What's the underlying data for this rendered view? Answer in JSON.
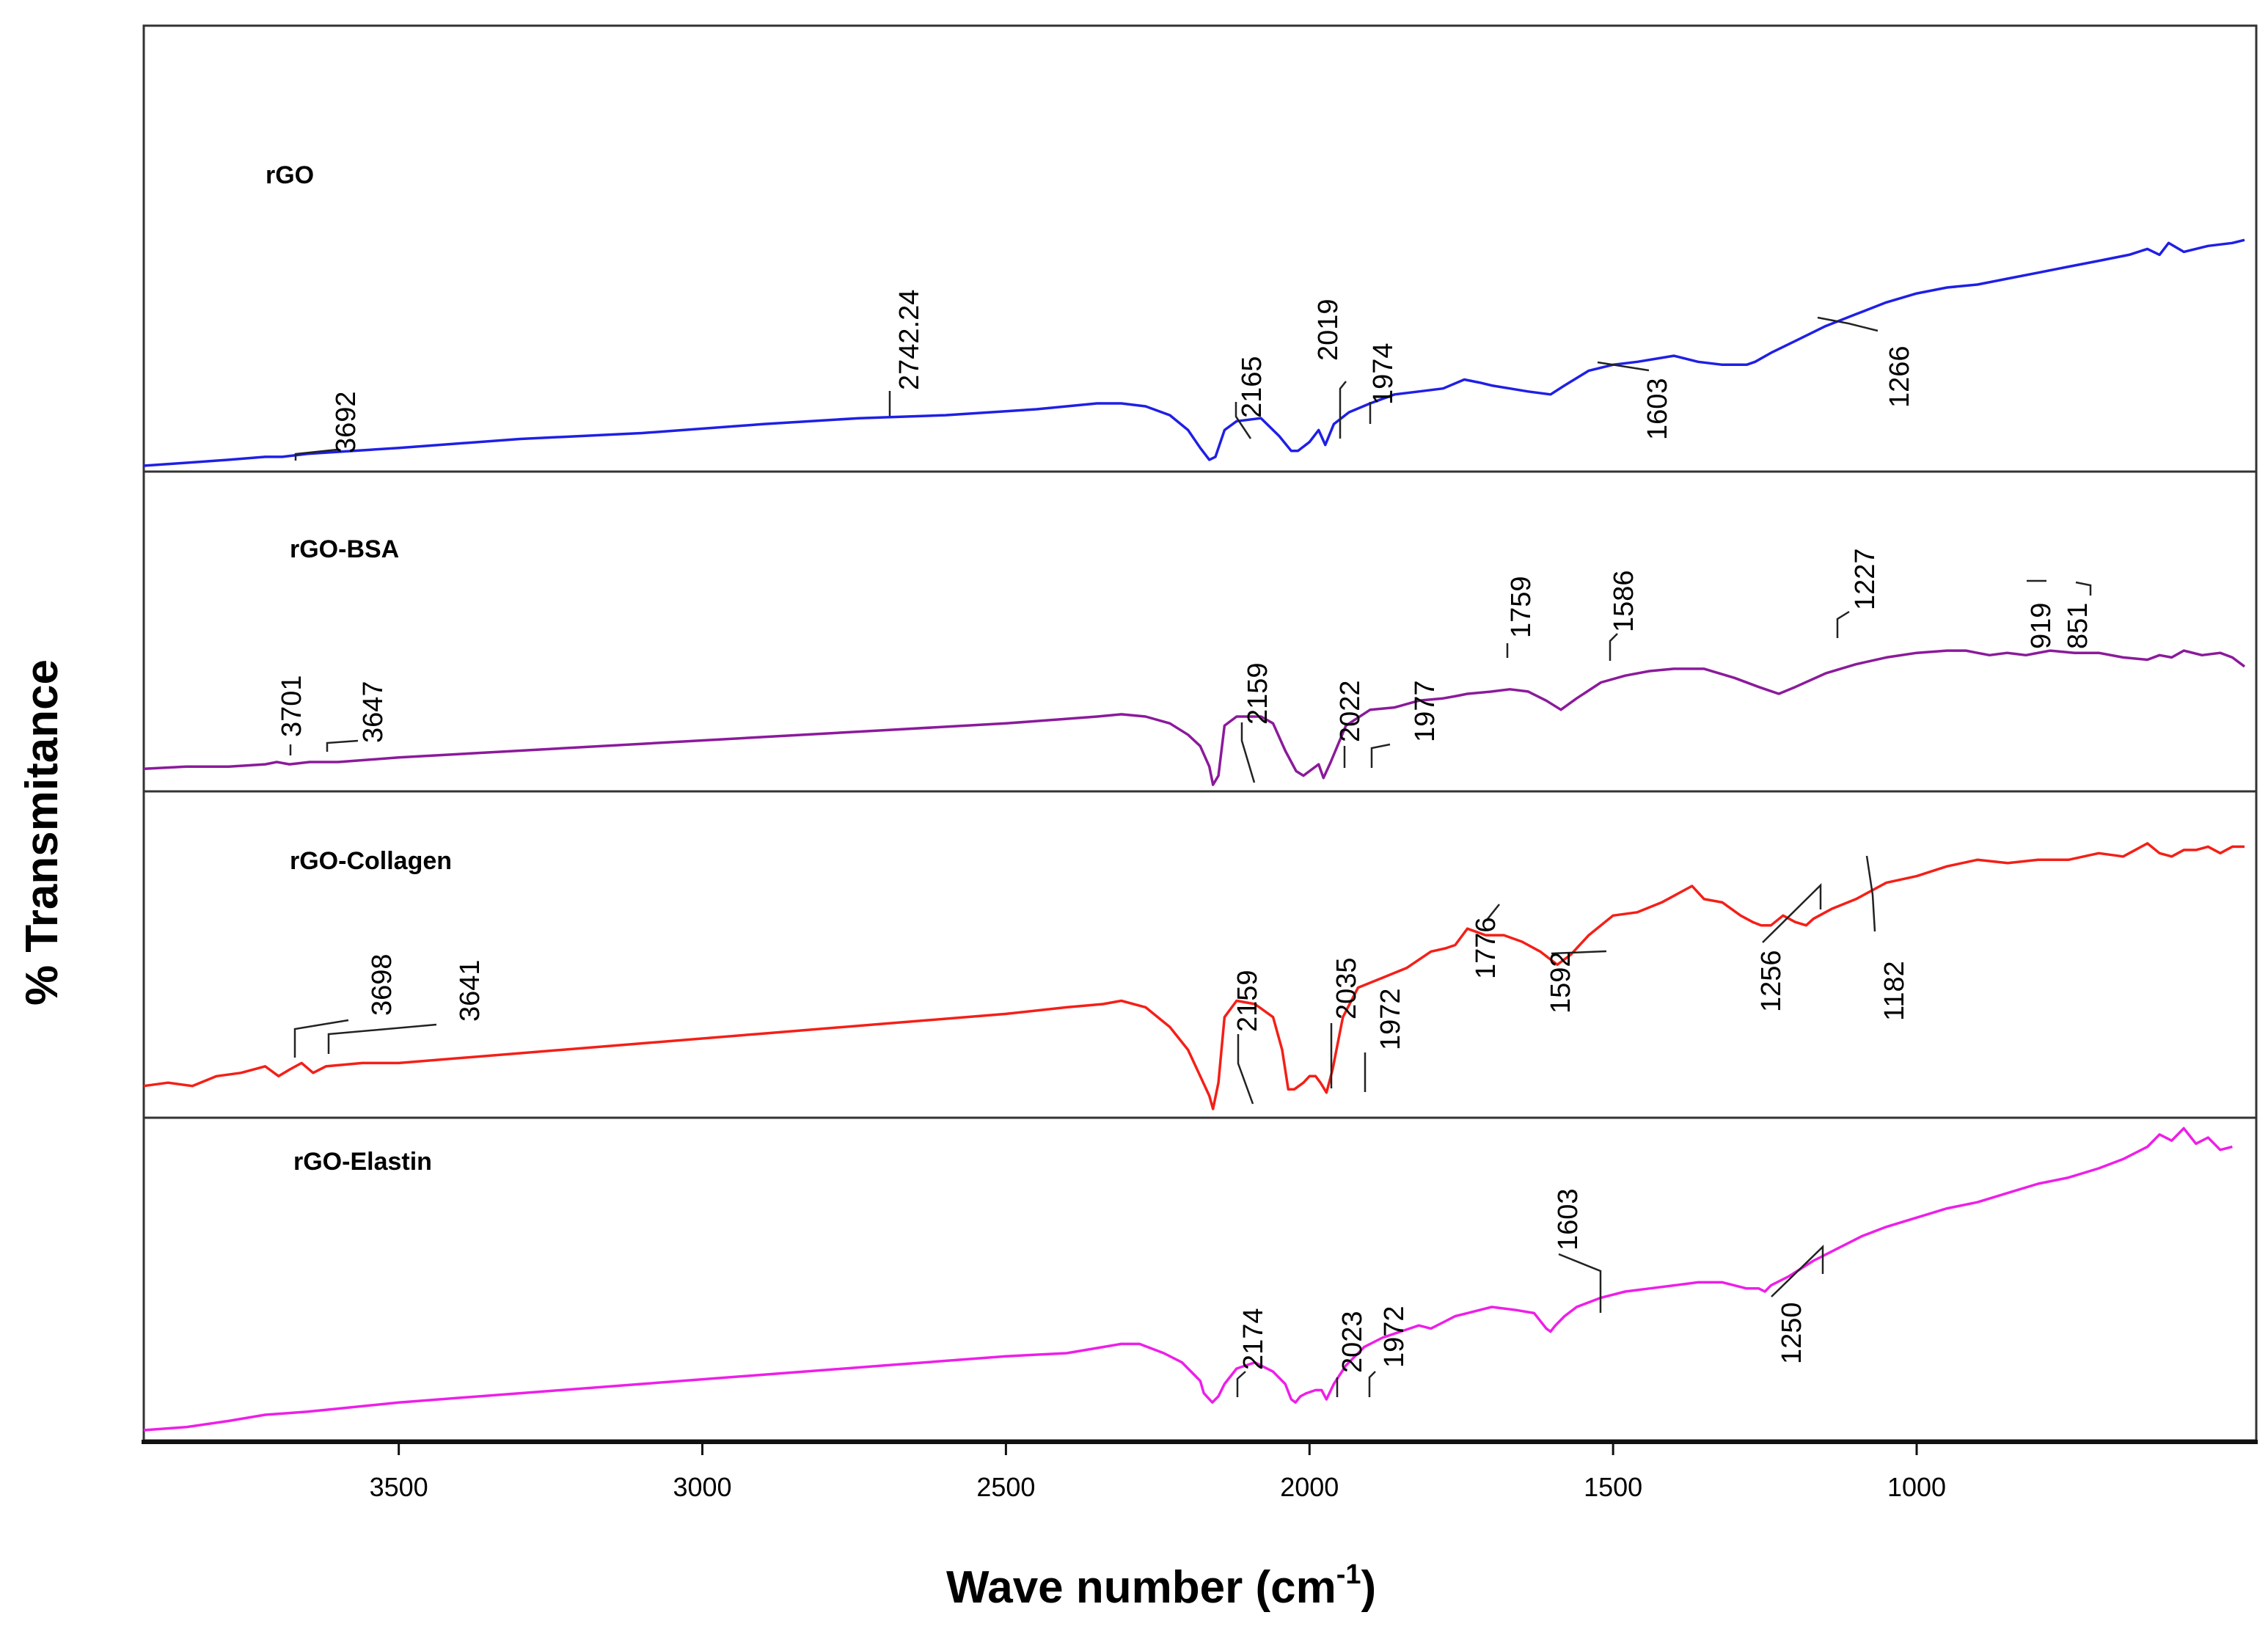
{
  "chart_data": {
    "type": "line",
    "title": "",
    "xlabel": "Wave number (cm",
    "xlabel_sup": "-1",
    "xlabel_close": ")",
    "ylabel": "% Transmitance",
    "xlim": [
      3920,
      460
    ],
    "xticks": [
      3500,
      3000,
      2500,
      2000,
      1500,
      1000
    ],
    "xtick_labels": [
      "3500",
      "3000",
      "2500",
      "2000",
      "1500",
      "1000"
    ],
    "grid": false,
    "series": [
      {
        "name": "rGO",
        "color": "#1f1fe6",
        "ylim": [
          0,
          1
        ],
        "x": [
          3920,
          3850,
          3780,
          3720,
          3692,
          3650,
          3500,
          3300,
          3100,
          2900,
          2742,
          2600,
          2450,
          2350,
          2310,
          2270,
          2230,
          2200,
          2180,
          2165,
          2155,
          2140,
          2120,
          2080,
          2050,
          2030,
          2019,
          2000,
          1985,
          1974,
          1960,
          1935,
          1900,
          1860,
          1820,
          1780,
          1745,
          1720,
          1700,
          1670,
          1640,
          1603,
          1580,
          1540,
          1500,
          1460,
          1400,
          1380,
          1360,
          1320,
          1280,
          1266,
          1240,
          1200,
          1150,
          1100,
          1050,
          1000,
          950,
          900,
          850,
          800,
          750,
          700,
          650,
          620,
          600,
          585,
          560,
          520,
          480,
          460
        ],
        "y": [
          0.0,
          0.01,
          0.02,
          0.03,
          0.03,
          0.04,
          0.06,
          0.09,
          0.11,
          0.14,
          0.16,
          0.17,
          0.19,
          0.21,
          0.21,
          0.2,
          0.17,
          0.12,
          0.06,
          0.02,
          0.03,
          0.12,
          0.15,
          0.16,
          0.1,
          0.05,
          0.05,
          0.08,
          0.12,
          0.07,
          0.14,
          0.18,
          0.21,
          0.24,
          0.25,
          0.26,
          0.29,
          0.28,
          0.27,
          0.26,
          0.25,
          0.24,
          0.27,
          0.32,
          0.34,
          0.35,
          0.37,
          0.36,
          0.35,
          0.34,
          0.34,
          0.35,
          0.38,
          0.42,
          0.47,
          0.51,
          0.55,
          0.58,
          0.6,
          0.61,
          0.63,
          0.65,
          0.67,
          0.69,
          0.71,
          0.73,
          0.71,
          0.75,
          0.72,
          0.74,
          0.75,
          0.76
        ],
        "annotations": [
          "3692",
          "2742.24",
          "2165",
          "2019",
          "1974",
          "1603",
          "1266"
        ]
      },
      {
        "name": "rGO-BSA",
        "color": "#8b1a9b",
        "ylim": [
          0,
          1
        ],
        "x": [
          3920,
          3850,
          3780,
          3720,
          3701,
          3680,
          3647,
          3600,
          3500,
          3300,
          3100,
          2900,
          2700,
          2500,
          2400,
          2350,
          2310,
          2270,
          2230,
          2200,
          2180,
          2165,
          2159,
          2150,
          2140,
          2120,
          2080,
          2060,
          2040,
          2022,
          2010,
          2000,
          1985,
          1977,
          1965,
          1940,
          1900,
          1860,
          1820,
          1780,
          1759,
          1740,
          1700,
          1670,
          1640,
          1610,
          1586,
          1560,
          1520,
          1480,
          1440,
          1400,
          1350,
          1300,
          1260,
          1227,
          1200,
          1150,
          1100,
          1050,
          1000,
          950,
          919,
          900,
          880,
          851,
          820,
          780,
          740,
          700,
          660,
          620,
          600,
          580,
          560,
          530,
          500,
          480,
          460
        ],
        "y": [
          0.07,
          0.08,
          0.08,
          0.09,
          0.1,
          0.09,
          0.1,
          0.1,
          0.12,
          0.15,
          0.18,
          0.21,
          0.24,
          0.27,
          0.29,
          0.3,
          0.31,
          0.3,
          0.27,
          0.22,
          0.17,
          0.08,
          0.0,
          0.04,
          0.26,
          0.3,
          0.3,
          0.27,
          0.15,
          0.06,
          0.04,
          0.06,
          0.09,
          0.03,
          0.1,
          0.26,
          0.33,
          0.34,
          0.37,
          0.38,
          0.39,
          0.4,
          0.41,
          0.42,
          0.41,
          0.37,
          0.33,
          0.38,
          0.45,
          0.48,
          0.5,
          0.51,
          0.51,
          0.47,
          0.43,
          0.4,
          0.43,
          0.49,
          0.53,
          0.56,
          0.58,
          0.59,
          0.59,
          0.58,
          0.57,
          0.58,
          0.57,
          0.59,
          0.58,
          0.58,
          0.56,
          0.55,
          0.57,
          0.56,
          0.59,
          0.57,
          0.58,
          0.56,
          0.52
        ],
        "annotations": [
          "3701",
          "3647",
          "2159",
          "2022",
          "1977",
          "1759",
          "1586",
          "1227",
          "919",
          "851"
        ]
      },
      {
        "name": "rGO-Collagen",
        "color": "#f41f17",
        "ylim": [
          0,
          1
        ],
        "x": [
          3920,
          3880,
          3840,
          3800,
          3760,
          3720,
          3698,
          3680,
          3660,
          3641,
          3620,
          3560,
          3500,
          3300,
          3100,
          2900,
          2700,
          2500,
          2400,
          2340,
          2310,
          2270,
          2230,
          2200,
          2180,
          2165,
          2159,
          2150,
          2140,
          2120,
          2090,
          2060,
          2045,
          2035,
          2025,
          2010,
          2000,
          1990,
          1982,
          1972,
          1962,
          1945,
          1920,
          1880,
          1840,
          1800,
          1776,
          1760,
          1740,
          1710,
          1680,
          1650,
          1620,
          1592,
          1570,
          1540,
          1500,
          1460,
          1420,
          1390,
          1370,
          1350,
          1320,
          1290,
          1270,
          1256,
          1240,
          1220,
          1200,
          1182,
          1170,
          1140,
          1100,
          1050,
          1000,
          950,
          900,
          850,
          800,
          750,
          700,
          660,
          640,
          620,
          600,
          580,
          560,
          540,
          520,
          500,
          480,
          460
        ],
        "y": [
          0.07,
          0.08,
          0.07,
          0.1,
          0.11,
          0.13,
          0.1,
          0.12,
          0.14,
          0.11,
          0.13,
          0.14,
          0.14,
          0.17,
          0.2,
          0.23,
          0.26,
          0.29,
          0.31,
          0.32,
          0.33,
          0.31,
          0.25,
          0.18,
          0.1,
          0.04,
          0.0,
          0.08,
          0.28,
          0.33,
          0.32,
          0.28,
          0.18,
          0.06,
          0.06,
          0.08,
          0.1,
          0.1,
          0.08,
          0.05,
          0.12,
          0.28,
          0.37,
          0.4,
          0.43,
          0.48,
          0.49,
          0.5,
          0.55,
          0.53,
          0.53,
          0.51,
          0.48,
          0.44,
          0.47,
          0.53,
          0.59,
          0.6,
          0.63,
          0.66,
          0.68,
          0.64,
          0.63,
          0.59,
          0.57,
          0.56,
          0.56,
          0.59,
          0.57,
          0.56,
          0.58,
          0.61,
          0.64,
          0.69,
          0.71,
          0.74,
          0.76,
          0.75,
          0.76,
          0.76,
          0.78,
          0.77,
          0.79,
          0.81,
          0.78,
          0.77,
          0.79,
          0.79,
          0.8,
          0.78,
          0.8,
          0.8
        ],
        "annotations": [
          "3698",
          "3641",
          "2159",
          "2035",
          "1972",
          "1776",
          "1592",
          "1256",
          "1182"
        ]
      },
      {
        "name": "rGO-Elastin",
        "color": "#ee1ee8",
        "ylim": [
          0,
          1
        ],
        "x": [
          3920,
          3850,
          3780,
          3720,
          3650,
          3600,
          3500,
          3300,
          3100,
          2900,
          2700,
          2500,
          2400,
          2340,
          2310,
          2280,
          2240,
          2210,
          2190,
          2180,
          2174,
          2160,
          2150,
          2140,
          2120,
          2090,
          2060,
          2040,
          2030,
          2023,
          2015,
          2005,
          1990,
          1980,
          1972,
          1960,
          1940,
          1910,
          1880,
          1850,
          1820,
          1800,
          1780,
          1760,
          1740,
          1700,
          1660,
          1630,
          1610,
          1603,
          1595,
          1580,
          1560,
          1520,
          1480,
          1440,
          1400,
          1360,
          1320,
          1280,
          1260,
          1250,
          1240,
          1210,
          1170,
          1130,
          1090,
          1050,
          1000,
          950,
          900,
          850,
          800,
          750,
          700,
          660,
          620,
          600,
          580,
          560,
          540,
          520,
          500,
          480
        ],
        "y": [
          0.0,
          0.01,
          0.03,
          0.05,
          0.06,
          0.07,
          0.09,
          0.12,
          0.15,
          0.18,
          0.21,
          0.24,
          0.25,
          0.27,
          0.28,
          0.28,
          0.25,
          0.22,
          0.18,
          0.16,
          0.12,
          0.09,
          0.11,
          0.15,
          0.2,
          0.22,
          0.19,
          0.15,
          0.1,
          0.09,
          0.11,
          0.12,
          0.13,
          0.13,
          0.1,
          0.15,
          0.21,
          0.27,
          0.3,
          0.32,
          0.34,
          0.33,
          0.35,
          0.37,
          0.38,
          0.4,
          0.39,
          0.38,
          0.33,
          0.32,
          0.34,
          0.37,
          0.4,
          0.43,
          0.45,
          0.46,
          0.47,
          0.48,
          0.48,
          0.46,
          0.46,
          0.45,
          0.47,
          0.5,
          0.55,
          0.59,
          0.63,
          0.66,
          0.69,
          0.72,
          0.74,
          0.77,
          0.8,
          0.82,
          0.85,
          0.88,
          0.92,
          0.96,
          0.94,
          0.98,
          0.93,
          0.95,
          0.91,
          0.92
        ],
        "annotations": [
          "2174",
          "2023",
          "1972",
          "1603",
          "1250"
        ]
      }
    ]
  }
}
